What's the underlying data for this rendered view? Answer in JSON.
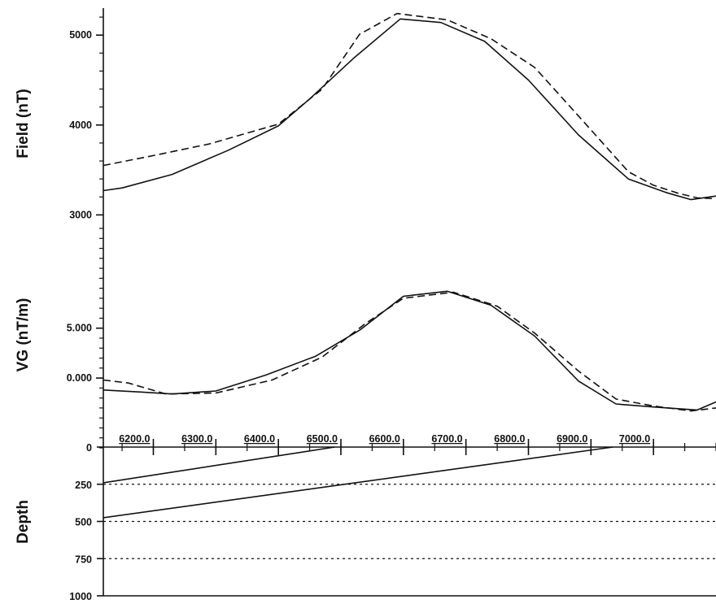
{
  "chart_data": [
    {
      "type": "line",
      "xlim": [
        6120,
        7100
      ],
      "ylim": [
        2850,
        5300
      ],
      "ylabel": "Field (nT)",
      "yticks": [
        {
          "value": 3000,
          "label": "3000"
        },
        {
          "value": 4000,
          "label": "4000"
        },
        {
          "value": 5000,
          "label": "5000"
        }
      ],
      "series": [
        {
          "style": "solid",
          "x": [
            6120,
            6150,
            6230,
            6320,
            6400,
            6450,
            6520,
            6595,
            6660,
            6730,
            6800,
            6880,
            6960,
            7020,
            7060,
            7100
          ],
          "y": [
            3270,
            3300,
            3450,
            3720,
            3990,
            4290,
            4740,
            5180,
            5140,
            4930,
            4500,
            3890,
            3400,
            3250,
            3170,
            3210
          ]
        },
        {
          "style": "dashed",
          "x": [
            6120,
            6200,
            6290,
            6400,
            6470,
            6530,
            6590,
            6670,
            6740,
            6810,
            6880,
            6960,
            7000,
            7040,
            7070,
            7100
          ],
          "y": [
            3550,
            3660,
            3790,
            4010,
            4400,
            5010,
            5240,
            5170,
            4960,
            4640,
            4100,
            3480,
            3330,
            3240,
            3190,
            3180
          ]
        }
      ]
    },
    {
      "type": "line",
      "xlim": [
        6120,
        7100
      ],
      "ylim": [
        -7,
        15
      ],
      "ylabel": "VG (nT/m)",
      "yticks": [
        {
          "value": 0,
          "label": "0.000"
        },
        {
          "value": 5,
          "label": "5.000"
        }
      ],
      "series": [
        {
          "style": "solid",
          "x": [
            6120,
            6180,
            6230,
            6300,
            6380,
            6460,
            6530,
            6600,
            6670,
            6740,
            6810,
            6880,
            6940,
            7000,
            7070,
            7100
          ],
          "y": [
            -1.2,
            -1.4,
            -1.6,
            -1.3,
            0.3,
            2.2,
            4.8,
            8.2,
            8.7,
            7.3,
            4.2,
            -0.3,
            -2.6,
            -2.9,
            -3.2,
            -2.4
          ]
        },
        {
          "style": "dashed",
          "x": [
            6120,
            6160,
            6220,
            6300,
            6390,
            6470,
            6540,
            6600,
            6680,
            6750,
            6810,
            6880,
            6940,
            7000,
            7060,
            7100
          ],
          "y": [
            -0.2,
            -0.5,
            -1.6,
            -1.5,
            -0.2,
            2.1,
            5.5,
            8.0,
            8.6,
            7.2,
            4.5,
            0.7,
            -2.1,
            -2.8,
            -3.3,
            -3.0
          ]
        }
      ]
    },
    {
      "type": "line",
      "xlim": [
        6120,
        7100
      ],
      "ylim": [
        1000,
        0
      ],
      "ylabel": "Depth",
      "yticks": [
        {
          "value": 0,
          "label": "0"
        },
        {
          "value": 250,
          "label": "250"
        },
        {
          "value": 500,
          "label": "500"
        },
        {
          "value": 750,
          "label": "750"
        },
        {
          "value": 1000,
          "label": "1000"
        }
      ],
      "xticks": [
        {
          "value": 6200,
          "label": "6200.0"
        },
        {
          "value": 6300,
          "label": "6300.0"
        },
        {
          "value": 6400,
          "label": "6400.0"
        },
        {
          "value": 6500,
          "label": "6500.0"
        },
        {
          "value": 6600,
          "label": "6600.0"
        },
        {
          "value": 6700,
          "label": "6700.0"
        },
        {
          "value": 6800,
          "label": "6800.0"
        },
        {
          "value": 6900,
          "label": "6900.0"
        },
        {
          "value": 7000,
          "label": "7000.0"
        }
      ],
      "reference_levels": [
        250,
        500,
        750
      ],
      "bodies": [
        {
          "x": [
            6120,
            6490
          ],
          "y": [
            240,
            0
          ]
        },
        {
          "x": [
            6120,
            6935
          ],
          "y": [
            475,
            0
          ]
        }
      ]
    }
  ]
}
